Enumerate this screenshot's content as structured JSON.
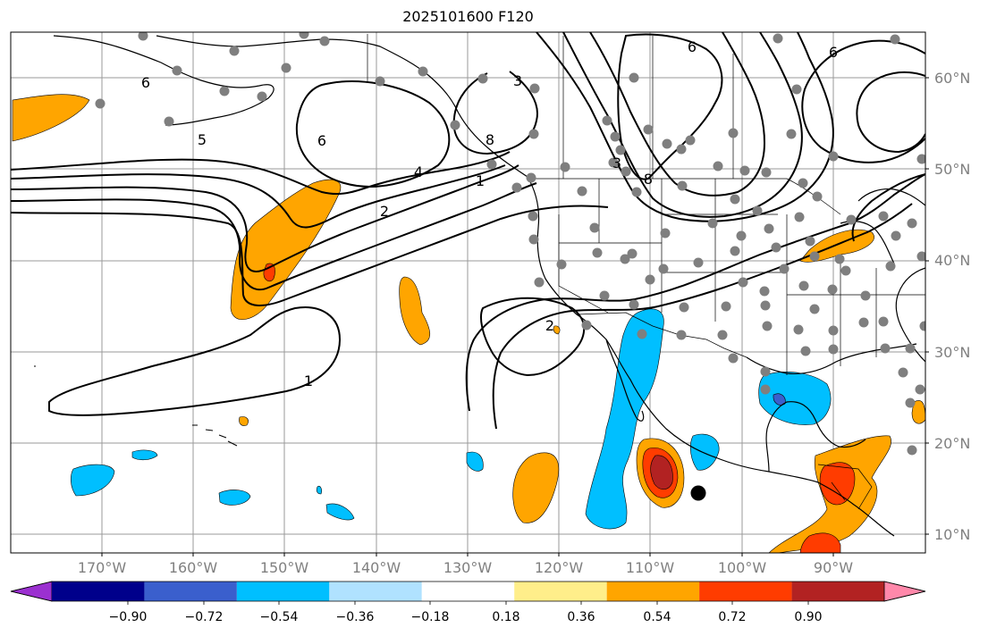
{
  "title": "2025101600 F120",
  "latitude_labels": [
    "60°N",
    "50°N",
    "40°N",
    "30°N",
    "20°N",
    "10°N"
  ],
  "longitude_labels": [
    "170°W",
    "160°W",
    "150°W",
    "140°W",
    "130°W",
    "120°W",
    "110°W",
    "100°W",
    "90°W"
  ],
  "contour_labels": [
    "6",
    "6",
    "6",
    "5",
    "4",
    "3",
    "2",
    "1",
    "1",
    "2",
    "3",
    "6",
    "8",
    "8"
  ],
  "colorbar": {
    "tick_labels": [
      "−0.90",
      "−0.72",
      "−0.54",
      "−0.36",
      "−0.18",
      "0.18",
      "0.36",
      "0.54",
      "0.72",
      "0.90"
    ],
    "colors": [
      "#9b30d0",
      "#00008b",
      "#3a5fcd",
      "#00bfff",
      "#b0e2ff",
      "#ffffff",
      "#ffee8a",
      "#ffa500",
      "#ff3c00",
      "#b22222",
      "#ff88aa"
    ]
  }
}
